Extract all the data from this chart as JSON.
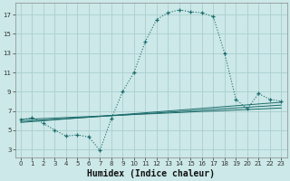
{
  "xlabel": "Humidex (Indice chaleur)",
  "bg_color": "#cce8e8",
  "grid_color": "#aacece",
  "line_color": "#1a6b6b",
  "xlim": [
    -0.5,
    23.5
  ],
  "ylim": [
    2.2,
    18.2
  ],
  "xticks": [
    0,
    1,
    2,
    3,
    4,
    5,
    6,
    7,
    8,
    9,
    10,
    11,
    12,
    13,
    14,
    15,
    16,
    17,
    18,
    19,
    20,
    21,
    22,
    23
  ],
  "yticks": [
    3,
    5,
    7,
    9,
    11,
    13,
    15,
    17
  ],
  "main_curve_x": [
    0,
    1,
    2,
    3,
    4,
    5,
    6,
    7,
    8,
    9,
    10,
    11,
    12,
    13,
    14,
    15,
    16,
    17,
    18,
    19,
    20,
    21,
    22,
    23
  ],
  "main_curve_y": [
    6.1,
    6.3,
    5.7,
    5.0,
    4.4,
    4.5,
    4.3,
    2.9,
    6.2,
    9.0,
    11.0,
    14.2,
    16.5,
    17.2,
    17.5,
    17.3,
    17.2,
    16.8,
    13.0,
    8.2,
    7.2,
    8.8,
    8.2,
    8.0
  ],
  "line1_x": [
    0,
    23
  ],
  "line1_y": [
    5.8,
    7.9
  ],
  "line2_x": [
    0,
    23
  ],
  "line2_y": [
    5.9,
    7.6
  ],
  "line3_x": [
    0,
    23
  ],
  "line3_y": [
    6.1,
    7.3
  ],
  "xlabel_fontsize": 7,
  "tick_fontsize": 5
}
